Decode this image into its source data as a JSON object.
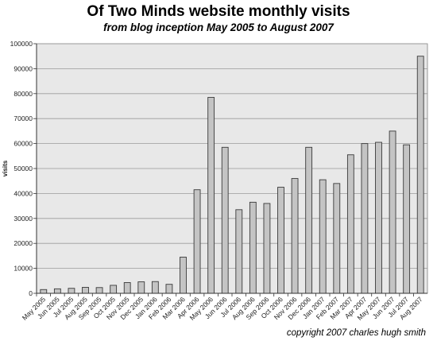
{
  "chart_data": {
    "type": "bar",
    "title": "Of Two Minds website monthly visits",
    "subtitle": "from blog inception May 2005 to August 2007",
    "xlabel": "",
    "ylabel": "visits",
    "ylim": [
      0,
      100000
    ],
    "yticks": [
      0,
      10000,
      20000,
      30000,
      40000,
      50000,
      60000,
      70000,
      80000,
      90000,
      100000
    ],
    "grid": true,
    "legend": "none",
    "categories": [
      "May 2005",
      "Jun 2005",
      "Jul 2005",
      "Aug 2005",
      "Sep 2005",
      "Oct 2005",
      "Nov 2005",
      "Dec 2005",
      "Jan 2006",
      "Feb 2006",
      "Mar 2006",
      "Apr 2006",
      "May 2006",
      "Jun 2006",
      "Jul 2006",
      "Aug 2006",
      "Sep 2006",
      "Oct 2006",
      "Nov 2006",
      "Dec 2006",
      "Jan 2007",
      "Feb 2007",
      "Mar 2007",
      "Apr 2007",
      "May 2007",
      "Jun 2007",
      "Jul 2007",
      "Aug 2007"
    ],
    "values": [
      1500,
      1800,
      2000,
      2400,
      2300,
      3200,
      4300,
      4600,
      4700,
      3600,
      14500,
      41500,
      78500,
      58500,
      33500,
      36500,
      36000,
      42500,
      46000,
      58500,
      45500,
      44000,
      55500,
      60000,
      60500,
      65000,
      59500,
      95000
    ],
    "colors": {
      "bar_fill": "#c4c4c4",
      "bar_stroke": "#3a3a3a",
      "plot_bg": "#e8e8e8",
      "grid": "#9a9a9a"
    }
  },
  "footer": {
    "copyright": "copyright 2007 charles hugh smith"
  }
}
